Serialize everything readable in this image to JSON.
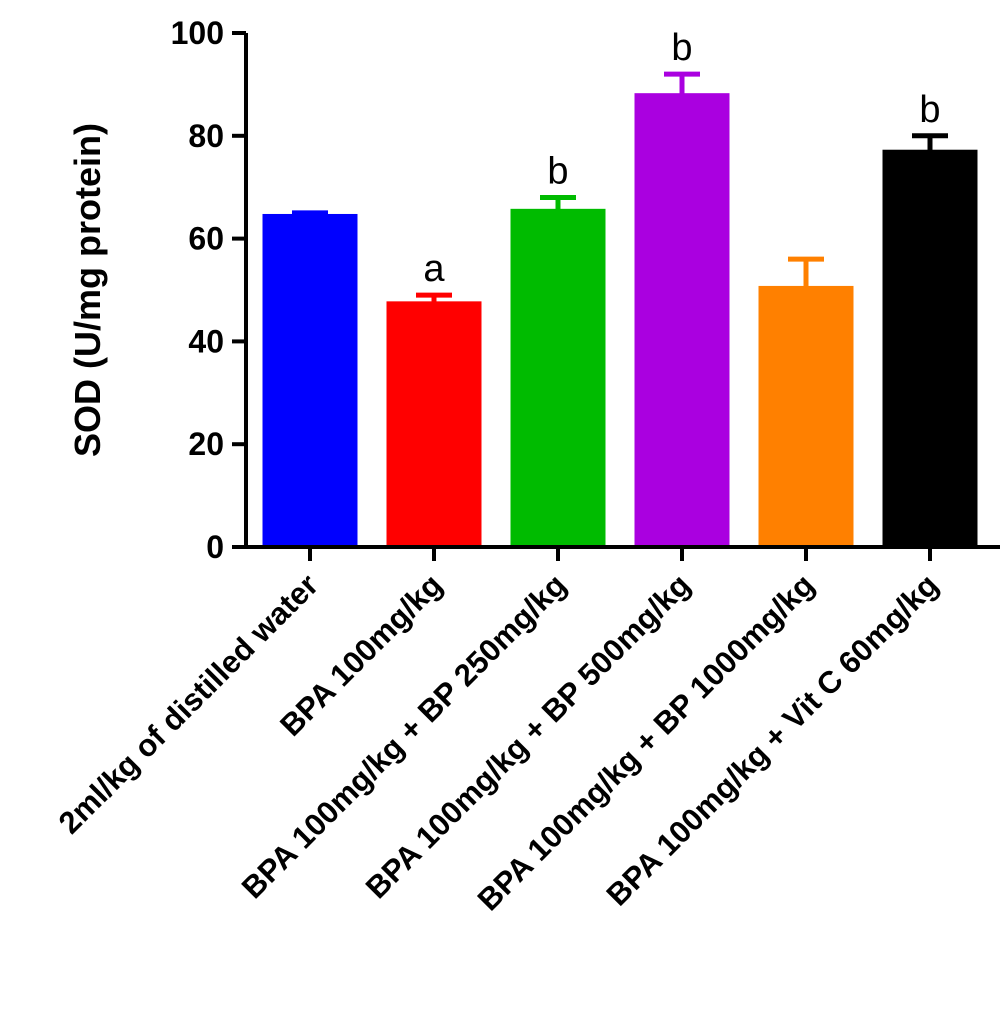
{
  "chart_data": {
    "type": "bar",
    "title": "",
    "xlabel": "",
    "ylabel": "SOD (U/mg protein)",
    "ylim": [
      0,
      100
    ],
    "yticks": [
      0,
      20,
      40,
      60,
      80,
      100
    ],
    "categories": [
      "2ml/kg of distilled water",
      "BPA 100mg/kg",
      "BPA 100mg/kg + BP 250mg/kg",
      "BPA 100mg/kg + BP 500mg/kg",
      "BPA 100mg/kg + BP 1000mg/kg",
      "BPA 100mg/kg + Vit C 60mg/kg"
    ],
    "values": [
      64.5,
      47.5,
      65.5,
      88,
      50.5,
      77
    ],
    "errors": [
      0.5,
      1.5,
      2.5,
      4,
      5.5,
      3
    ],
    "significance": [
      "",
      "a",
      "b",
      "b",
      "",
      "b"
    ],
    "colors": [
      "#0000ff",
      "#ff0000",
      "#00bb00",
      "#aa00e0",
      "#ff8000",
      "#000000"
    ],
    "grid": false,
    "legend": "none"
  }
}
